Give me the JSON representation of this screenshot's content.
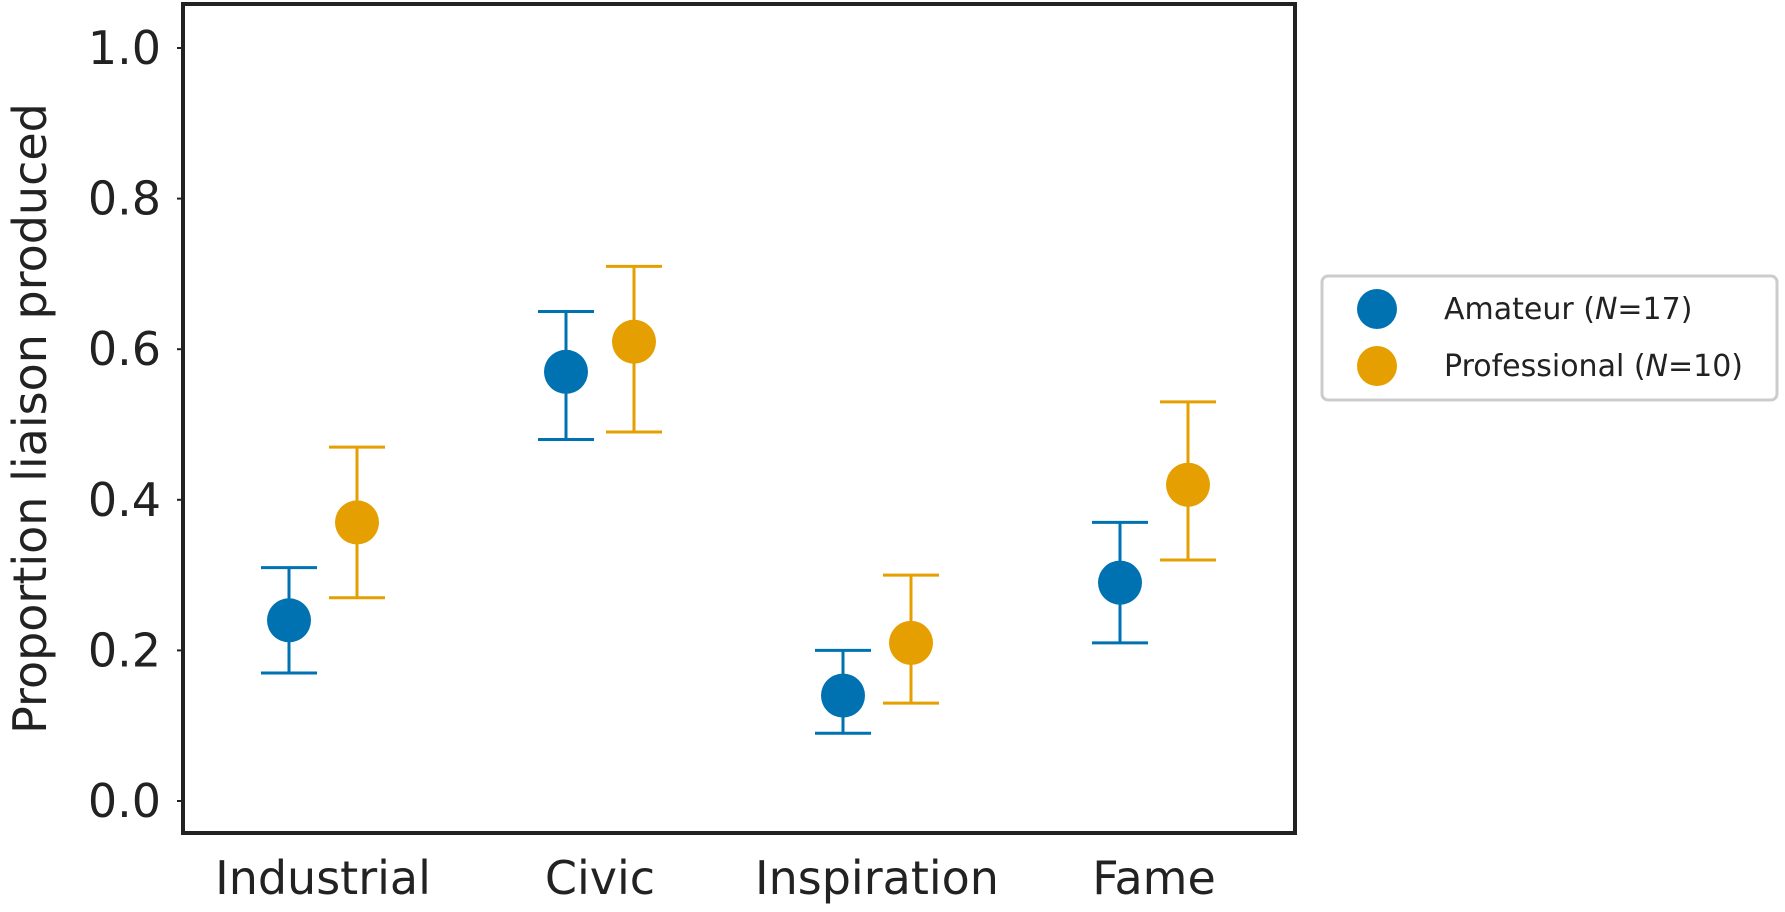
{
  "chart_data": {
    "type": "scatter",
    "subtype": "dot-with-error-bars",
    "categories": [
      "Industrial",
      "Civic",
      "Inspiration",
      "Fame"
    ],
    "ylabel": "Proportion liaison produced",
    "xlabel": "",
    "ylim": [
      0.0,
      1.0
    ],
    "yticks": [
      "0.0",
      "0.2",
      "0.4",
      "0.6",
      "0.8",
      "1.0"
    ],
    "grid": false,
    "legend_position": "outside-right",
    "series": [
      {
        "legend_main": "Amateur (",
        "legend_n_italic": "N",
        "legend_tail": "=17)",
        "color": "#0072B2",
        "values": [
          0.24,
          0.57,
          0.14,
          0.29
        ],
        "err_low": [
          0.17,
          0.48,
          0.09,
          0.21
        ],
        "err_high": [
          0.31,
          0.65,
          0.2,
          0.37
        ]
      },
      {
        "legend_main": "Professional (",
        "legend_n_italic": "N",
        "legend_tail": "=10)",
        "color": "#E69F00",
        "values": [
          0.37,
          0.61,
          0.21,
          0.42
        ],
        "err_low": [
          0.27,
          0.49,
          0.13,
          0.32
        ],
        "err_high": [
          0.47,
          0.71,
          0.3,
          0.53
        ]
      }
    ]
  }
}
